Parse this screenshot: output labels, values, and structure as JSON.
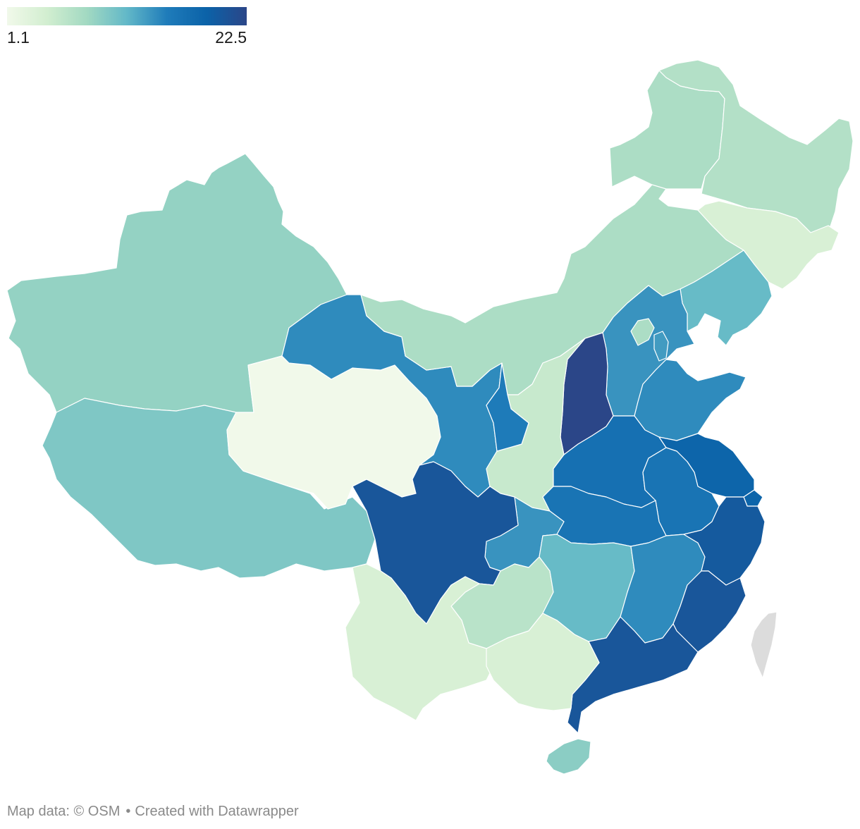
{
  "legend": {
    "min_label": "1.1",
    "max_label": "22.5",
    "min_value": 1.1,
    "max_value": 22.5,
    "color_stops": [
      "#f1f9ea",
      "#d2eed0",
      "#a2d9c2",
      "#62b8c8",
      "#1f7cba",
      "#0b62a8",
      "#2b4688"
    ]
  },
  "no_data_color": "#dcdcdc",
  "regions": [
    {
      "name": "xinjiang",
      "value": 9.0
    },
    {
      "name": "tibet",
      "value": 10.2
    },
    {
      "name": "qinghai",
      "value": 1.1
    },
    {
      "name": "gansu",
      "value": 14.5
    },
    {
      "name": "inner-mongolia",
      "value": 7.5
    },
    {
      "name": "heilongjiang",
      "value": 7.0
    },
    {
      "name": "jilin",
      "value": 4.0
    },
    {
      "name": "liaoning",
      "value": 11.5
    },
    {
      "name": "beijing",
      "value": 7.5
    },
    {
      "name": "tianjin",
      "value": 13.5
    },
    {
      "name": "hebei",
      "value": 14.0
    },
    {
      "name": "shanxi",
      "value": 22.5
    },
    {
      "name": "ningxia",
      "value": 15.5
    },
    {
      "name": "shaanxi",
      "value": 5.5
    },
    {
      "name": "shandong",
      "value": 14.5
    },
    {
      "name": "henan",
      "value": 17.0
    },
    {
      "name": "jiangsu",
      "value": 18.5
    },
    {
      "name": "shanghai",
      "value": 18.5
    },
    {
      "name": "anhui",
      "value": 16.5
    },
    {
      "name": "hubei",
      "value": 16.5
    },
    {
      "name": "chongqing",
      "value": 14.0
    },
    {
      "name": "sichuan",
      "value": 20.5
    },
    {
      "name": "guizhou",
      "value": 6.5
    },
    {
      "name": "yunnan",
      "value": 4.0
    },
    {
      "name": "hunan",
      "value": 11.5
    },
    {
      "name": "jiangxi",
      "value": 14.5
    },
    {
      "name": "zhejiang",
      "value": 20.0
    },
    {
      "name": "fujian",
      "value": 20.5
    },
    {
      "name": "guangdong",
      "value": 20.5
    },
    {
      "name": "guangxi",
      "value": 4.0
    },
    {
      "name": "hainan",
      "value": 9.5
    },
    {
      "name": "taiwan",
      "value": null
    }
  ],
  "footer": {
    "map_credit": "Map data: © OSM",
    "separator": "•",
    "tool_credit": "Created with Datawrapper"
  }
}
